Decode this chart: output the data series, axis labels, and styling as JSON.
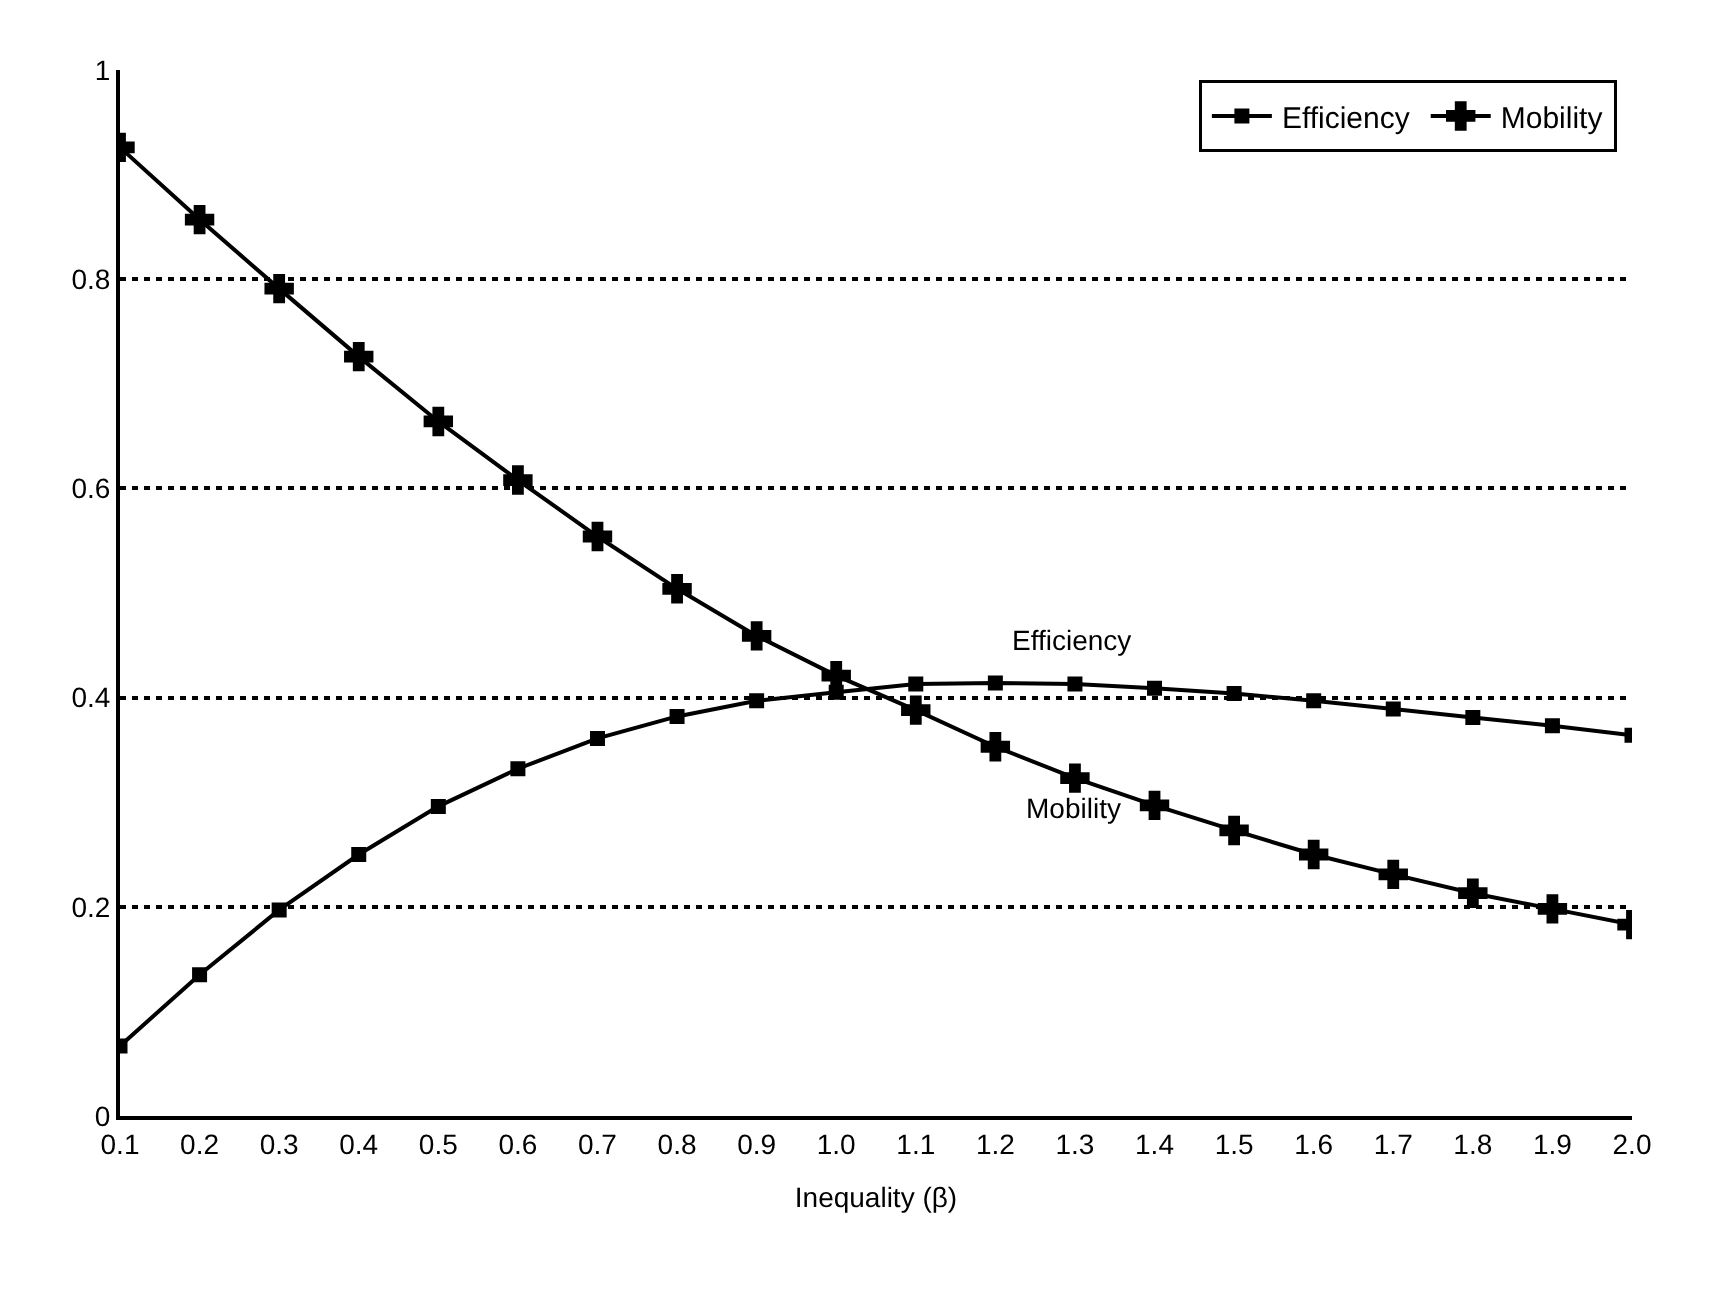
{
  "chart_data": {
    "type": "line",
    "xlabel": "Inequality (β)",
    "categories": [
      "0.1",
      "0.2",
      "0.3",
      "0.4",
      "0.5",
      "0.6",
      "0.7",
      "0.8",
      "0.9",
      "1.0",
      "1.1",
      "1.2",
      "1.3",
      "1.4",
      "1.5",
      "1.6",
      "1.7",
      "1.8",
      "1.9",
      "2.0"
    ],
    "series": [
      {
        "name": "Efficiency",
        "color": "#000000",
        "marker": "square",
        "values": [
          0.067,
          0.135,
          0.197,
          0.25,
          0.296,
          0.332,
          0.361,
          0.382,
          0.397,
          0.405,
          0.413,
          0.414,
          0.413,
          0.409,
          0.404,
          0.397,
          0.389,
          0.381,
          0.373,
          0.364
        ]
      },
      {
        "name": "Mobility",
        "color": "#000000",
        "marker": "cross",
        "values": [
          0.926,
          0.857,
          0.791,
          0.726,
          0.664,
          0.608,
          0.554,
          0.504,
          0.459,
          0.421,
          0.388,
          0.353,
          0.323,
          0.297,
          0.273,
          0.25,
          0.231,
          0.213,
          0.198,
          0.183
        ]
      }
    ],
    "ylim": [
      0,
      1
    ],
    "yticks": [
      0,
      0.2,
      0.4,
      0.6,
      0.8,
      1
    ],
    "grid": "y",
    "line_style": "solid",
    "legend": "top right",
    "annotations": [
      "Efficiency",
      "Mobility"
    ]
  }
}
